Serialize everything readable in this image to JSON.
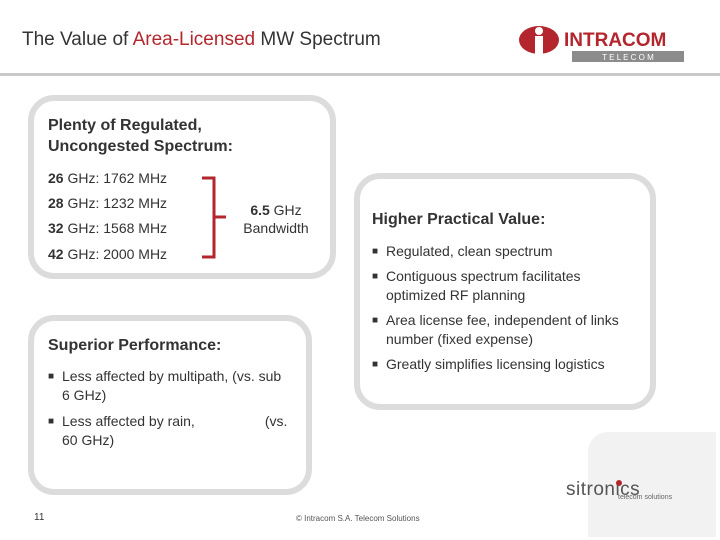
{
  "header": {
    "title_prefix": "The Value of ",
    "title_highlight": "Area-Licensed",
    "title_suffix": " MW Spectrum",
    "logo_main": "INTRACOM",
    "logo_sub": "T E L E C O M"
  },
  "spectrum": {
    "heading": "Plenty of Regulated, Uncongested Spectrum:",
    "rows": [
      {
        "band": "26",
        "text": " GHz: 1762 MHz"
      },
      {
        "band": "28",
        "text": " GHz: 1232 MHz"
      },
      {
        "band": "32",
        "text": " GHz: 1568 MHz"
      },
      {
        "band": "42",
        "text": " GHz: 2000 MHz"
      }
    ],
    "total_value": "6.5",
    "total_unit": " GHz",
    "total_label": "Bandwidth"
  },
  "value": {
    "heading": "Higher Practical Value:",
    "bullets": [
      "Regulated, clean spectrum",
      "Contiguous spectrum facilitates optimized RF planning",
      "Area license fee, independent of links number (fixed expense)",
      "Greatly simplifies licensing logistics"
    ]
  },
  "performance": {
    "heading": "Superior Performance:",
    "bullet1": "Less affected by multipath, (vs. sub 6 GHz)",
    "bullet2_a": "Less affected by rain,",
    "bullet2_b": "(vs.",
    "bullet2_c": "60 GHz)"
  },
  "footer": {
    "page_number": "11",
    "copyright": "© Intracom S.A. Telecom Solutions",
    "partner_logo": "sitronics",
    "partner_tagline": "telecom solutions"
  },
  "colors": {
    "accent": "#b3262d",
    "box_border": "#dcdcdc",
    "text": "#333333"
  }
}
